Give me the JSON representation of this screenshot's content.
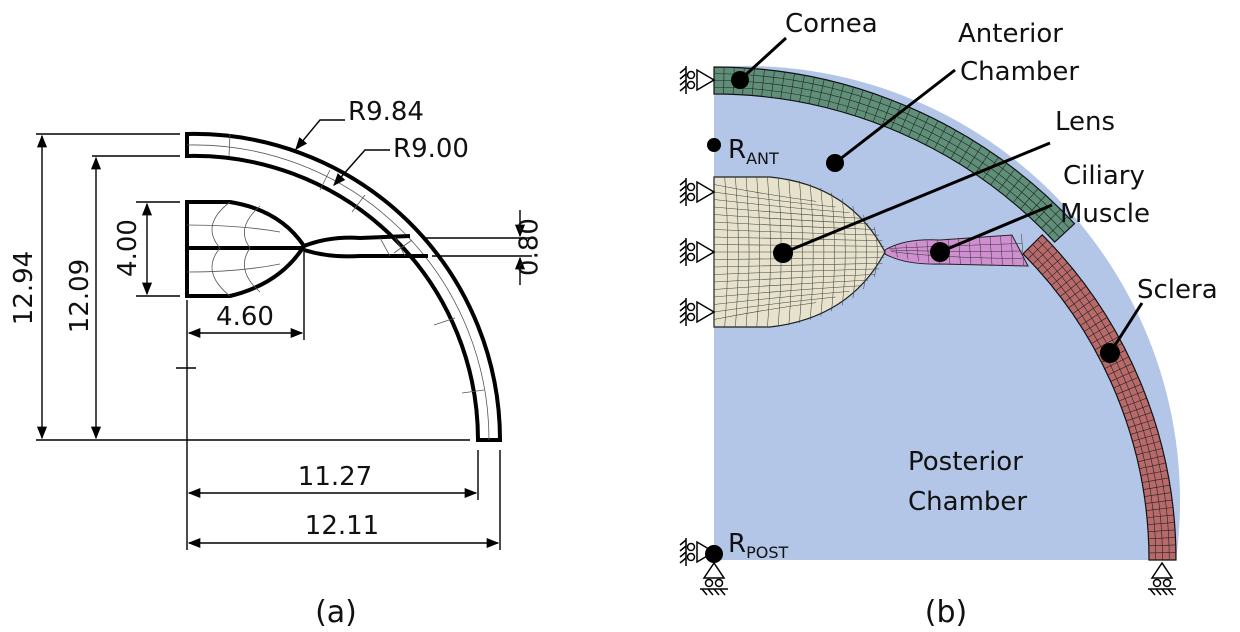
{
  "panel_a": {
    "caption": "(a)",
    "dims": {
      "r_outer": "R9.84",
      "r_inner": "R9.00",
      "thickness": "0.80",
      "lens_height": "4.00",
      "lens_width": "4.60",
      "height_outer": "12.94",
      "height_inner": "12.09",
      "width_inner": "11.27",
      "width_outer": "12.11"
    }
  },
  "panel_b": {
    "caption": "(b)",
    "labels": {
      "cornea": "Cornea",
      "anterior_1": "Anterior",
      "anterior_2": "Chamber",
      "lens": "Lens",
      "ciliary_1": "Ciliary",
      "ciliary_2": "Muscle",
      "sclera": "Sclera",
      "posterior_1": "Posterior",
      "posterior_2": "Chamber",
      "r_ant_main": "R",
      "r_ant_sub": "ANT",
      "r_post_main": "R",
      "r_post_sub": "POST"
    },
    "colors": {
      "chamber": "#b3c6e7",
      "cornea": "#5f8f78",
      "lens": "#e6e2cc",
      "ciliary": "#cf8fd0",
      "sclera": "#b86a6a",
      "mesh_line": "#222222"
    }
  }
}
